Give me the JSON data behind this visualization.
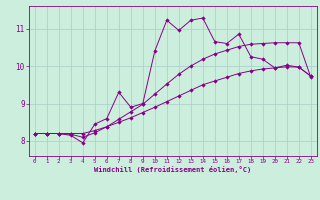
{
  "background_color": "#cceedd",
  "grid_color": "#aacccc",
  "line_color": "#880088",
  "marker": "D",
  "marker_size": 2.2,
  "xlabel": "Windchill (Refroidissement éolien,°C)",
  "xlim": [
    -0.5,
    23.5
  ],
  "ylim": [
    7.6,
    11.6
  ],
  "yticks": [
    8,
    9,
    10,
    11
  ],
  "xticks": [
    0,
    1,
    2,
    3,
    4,
    5,
    6,
    7,
    8,
    9,
    10,
    11,
    12,
    13,
    14,
    15,
    16,
    17,
    18,
    19,
    20,
    21,
    22,
    23
  ],
  "line1_x": [
    0,
    1,
    2,
    3,
    4,
    5,
    6,
    7,
    8,
    9,
    10,
    11,
    12,
    13,
    14,
    15,
    16,
    17,
    18,
    19,
    20,
    21,
    22,
    23
  ],
  "line1_y": [
    8.2,
    8.2,
    8.2,
    8.2,
    8.2,
    8.28,
    8.38,
    8.5,
    8.62,
    8.76,
    8.9,
    9.05,
    9.2,
    9.35,
    9.5,
    9.6,
    9.7,
    9.8,
    9.87,
    9.92,
    9.95,
    9.98,
    9.97,
    9.73
  ],
  "line2_x": [
    0,
    1,
    2,
    3,
    4,
    5,
    6,
    7,
    8,
    9,
    10,
    11,
    12,
    13,
    14,
    15,
    16,
    17,
    18,
    19,
    20,
    21,
    22,
    23
  ],
  "line2_y": [
    8.2,
    8.2,
    8.2,
    8.18,
    8.1,
    8.22,
    8.38,
    8.58,
    8.78,
    8.98,
    9.25,
    9.52,
    9.78,
    10.0,
    10.18,
    10.32,
    10.42,
    10.52,
    10.58,
    10.6,
    10.62,
    10.62,
    10.62,
    9.7
  ],
  "line3_x": [
    0,
    1,
    2,
    3,
    4,
    5,
    6,
    7,
    8,
    9,
    10,
    11,
    12,
    13,
    14,
    15,
    16,
    17,
    18,
    19,
    20,
    21,
    22,
    23
  ],
  "line3_y": [
    8.2,
    8.2,
    8.2,
    8.15,
    7.95,
    8.45,
    8.6,
    9.3,
    8.9,
    9.0,
    10.4,
    11.22,
    10.95,
    11.22,
    11.28,
    10.65,
    10.6,
    10.85,
    10.25,
    10.18,
    9.95,
    10.02,
    9.97,
    9.73
  ]
}
